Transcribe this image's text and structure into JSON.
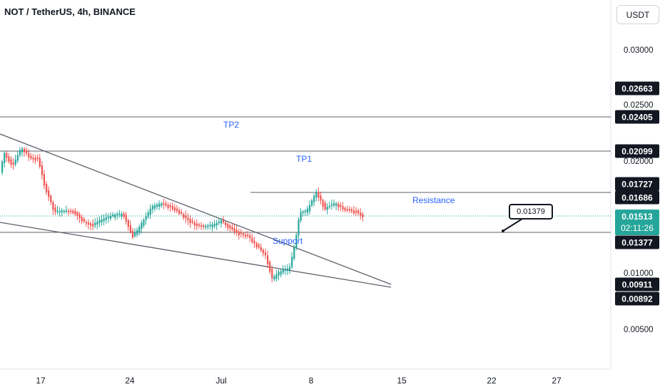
{
  "header": {
    "title": "NOT / TetherUS, 4h, BINANCE",
    "currency_button": "USDT"
  },
  "price_scale": {
    "ticks": [
      "0.03000",
      "0.02500",
      "0.02000",
      "0.01000",
      "0.00500"
    ],
    "labels": [
      "0.02663",
      "0.02405",
      "0.02099",
      "0.01727",
      "0.01686",
      "0.01377",
      "0.00911",
      "0.00892"
    ],
    "last_price": "0.01513",
    "countdown": "02:11:26"
  },
  "time_scale": {
    "ticks": [
      "17",
      "24",
      "Jul",
      "8",
      "15",
      "22",
      "27"
    ]
  },
  "annotations": {
    "tp2": "TP2",
    "tp1": "TP1",
    "resistance": "Resistance",
    "support": "Support",
    "callout": "0.01379"
  },
  "colors": {
    "up": "#26a69a",
    "down": "#ef5350",
    "line": "#787b86",
    "text_annotation": "#2962ff",
    "label_bg": "#131722"
  }
}
